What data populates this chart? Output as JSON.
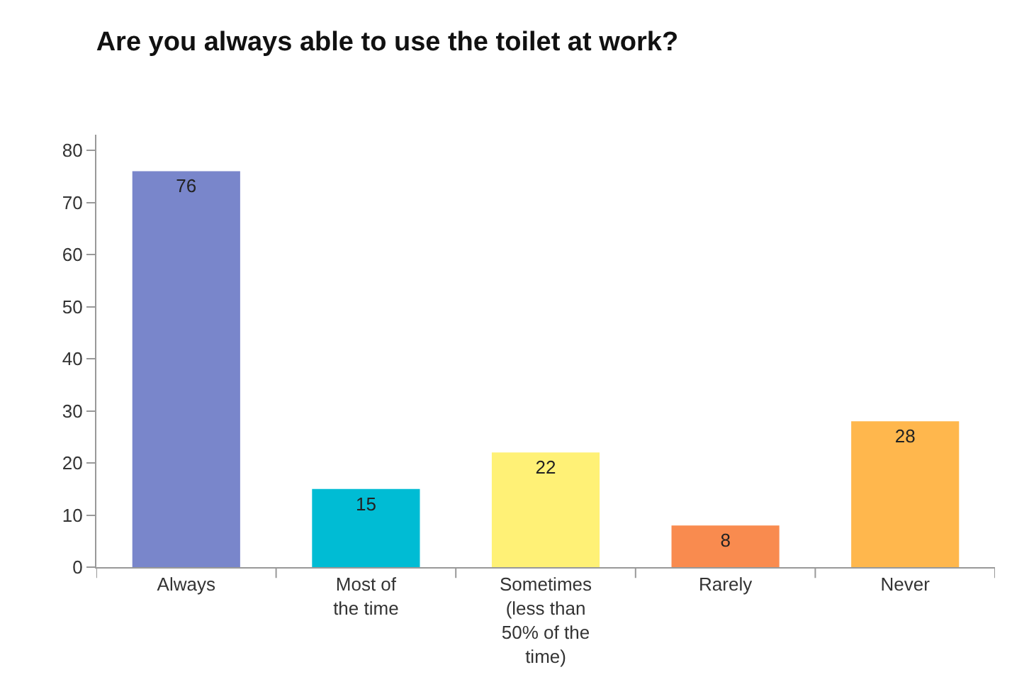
{
  "chart_data": {
    "type": "bar",
    "title": "Are you always able to use the toilet at work?",
    "categories": [
      "Always",
      "Most of the time",
      "Sometimes (less than 50% of the time)",
      "Rarely",
      "Never"
    ],
    "values": [
      76,
      15,
      22,
      8,
      28
    ],
    "colors": [
      "#7986cb",
      "#00bcd4",
      "#fff176",
      "#f98b4f",
      "#ffb74d"
    ],
    "ylim": [
      0,
      83
    ],
    "yticks": [
      0,
      10,
      20,
      30,
      40,
      50,
      60,
      70,
      80
    ],
    "data_labels": true
  }
}
